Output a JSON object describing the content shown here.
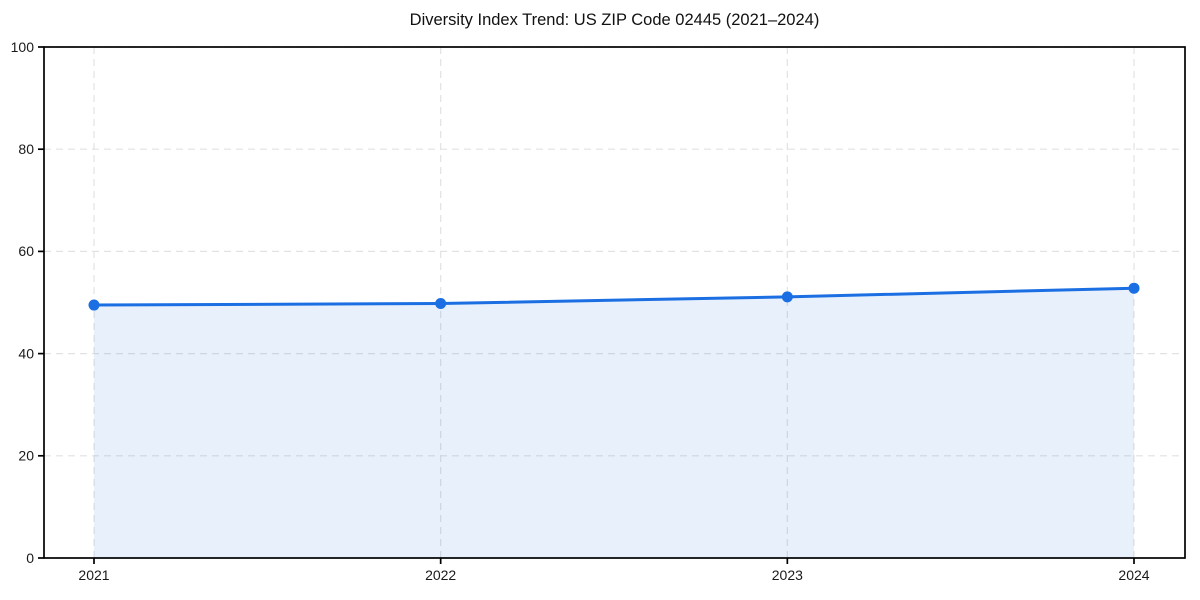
{
  "chart_data": {
    "type": "area",
    "title": "Diversity Index Trend: US ZIP Code 02445 (2021–2024)",
    "categories": [
      "2021",
      "2022",
      "2023",
      "2024"
    ],
    "series": [
      {
        "name": "Diversity Index",
        "values": [
          49.5,
          49.8,
          51.1,
          52.8
        ]
      }
    ],
    "xlabel": "",
    "ylabel": "",
    "ylim": [
      0,
      100
    ],
    "yticks": [
      0,
      20,
      40,
      60,
      80,
      100
    ],
    "grid": true,
    "grid_style": "dashed",
    "legend_position": "none",
    "marker": "circle",
    "colors": {
      "line": "#1c6fe2",
      "fill": "rgba(28,111,226,0.10)",
      "grid": "#e2e2e2",
      "axis": "#000000",
      "tick_text": "#1a1a1a",
      "title_text": "#111111",
      "background": "#ffffff"
    }
  }
}
